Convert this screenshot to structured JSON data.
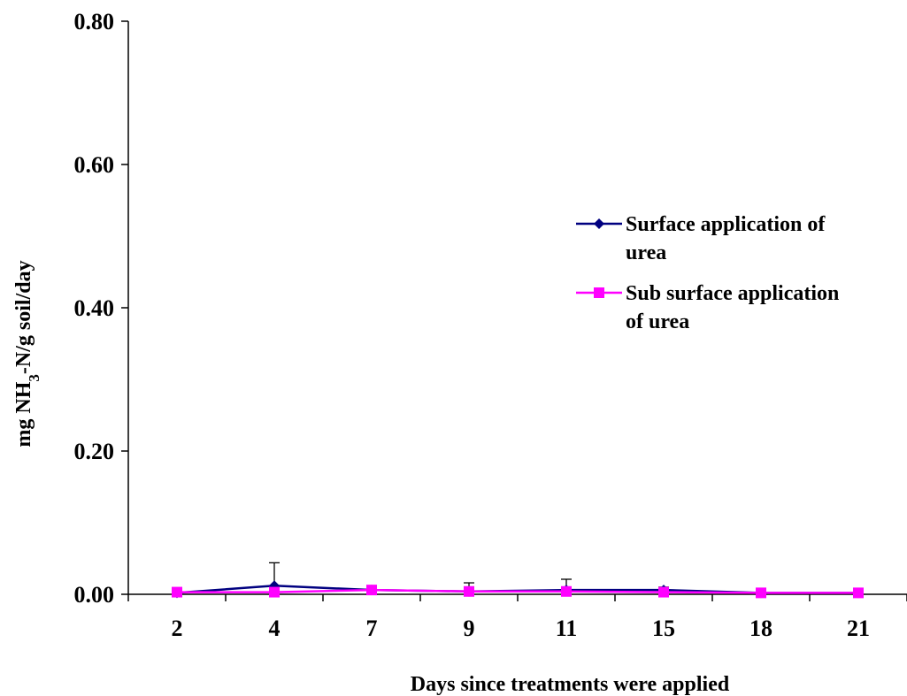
{
  "chart_data": {
    "type": "line",
    "title": "",
    "xlabel": "Days since treatments were applied",
    "ylabel_parts": {
      "prefix": "mg NH",
      "subscript": "3",
      "suffix": "-N/g soil/day"
    },
    "categories": [
      "2",
      "4",
      "7",
      "9",
      "11",
      "15",
      "18",
      "21"
    ],
    "ylim": [
      0,
      0.8
    ],
    "yticks": [
      "0.00",
      "0.20",
      "0.40",
      "0.60",
      "0.80"
    ],
    "ytick_values": [
      0,
      0.2,
      0.4,
      0.6,
      0.8
    ],
    "grid": false,
    "legend_position": "right",
    "series": [
      {
        "name": "Surface application of urea",
        "legend_lines": [
          "Surface application of",
          "urea"
        ],
        "color": "#000080",
        "marker": "diamond",
        "values": [
          0.002,
          0.012,
          0.006,
          0.004,
          0.006,
          0.006,
          0.002,
          0.002
        ],
        "error": [
          0.0,
          0.032,
          0.005,
          0.012,
          0.015,
          0.004,
          0.0,
          0.0
        ]
      },
      {
        "name": "Sub surface application of urea",
        "legend_lines": [
          "Sub surface application",
          "of urea"
        ],
        "color": "#FF00FF",
        "marker": "square",
        "values": [
          0.003,
          0.003,
          0.006,
          0.004,
          0.004,
          0.003,
          0.002,
          0.002
        ],
        "error": [
          0.0,
          0.0,
          0.0,
          0.0,
          0.0,
          0.0,
          0.0,
          0.0
        ]
      }
    ]
  }
}
